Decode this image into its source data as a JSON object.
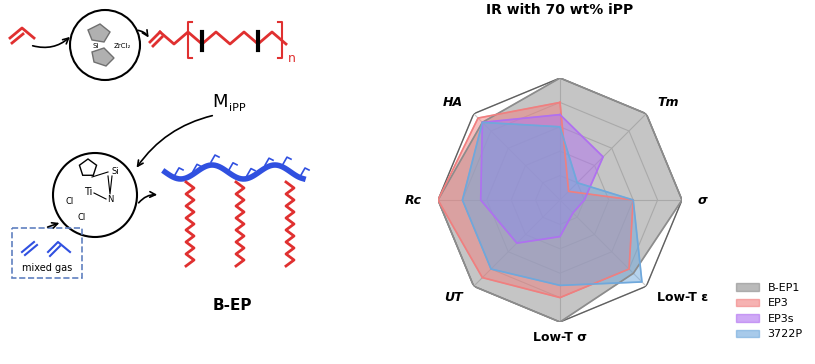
{
  "scheme": {
    "monomer_product": {
      "main": "M",
      "sub": "iPP"
    },
    "chain_repeat": "n",
    "zr_catalyst": [
      "Si",
      "ZrCl₂"
    ],
    "ti_catalyst": [
      "Si",
      "Ti",
      "N",
      "Cl",
      "Cl"
    ],
    "feed": "mixed gas",
    "product": "B-EP"
  },
  "chart_data": {
    "type": "radar",
    "title": "IR with 70 wt% iPP",
    "categories": [
      null,
      "Tm",
      "σ",
      "Low-T ε",
      "Low-T σ",
      "UT",
      "Rc",
      "HA"
    ],
    "series": [
      {
        "name": "B-EP1",
        "color": "#8c8c8c",
        "values": [
          10,
          10,
          10,
          8.5,
          10,
          10,
          10,
          9
        ]
      },
      {
        "name": "EP3",
        "color": "#f07f7f",
        "values": [
          8,
          1,
          6,
          8,
          8,
          9,
          10,
          9.5
        ]
      },
      {
        "name": "EP3s",
        "color": "#b070f0",
        "values": [
          7,
          5,
          2,
          1.5,
          3,
          5,
          6.5,
          9
        ]
      },
      {
        "name": "3722P",
        "color": "#6fa8dc",
        "values": [
          6,
          2,
          6,
          9.5,
          7,
          8,
          8,
          9
        ]
      }
    ],
    "ylim": [
      0,
      10
    ],
    "yticks": [
      2,
      4,
      6,
      8,
      10
    ],
    "grid": true,
    "legend": "lower right",
    "tick_labels": false
  }
}
